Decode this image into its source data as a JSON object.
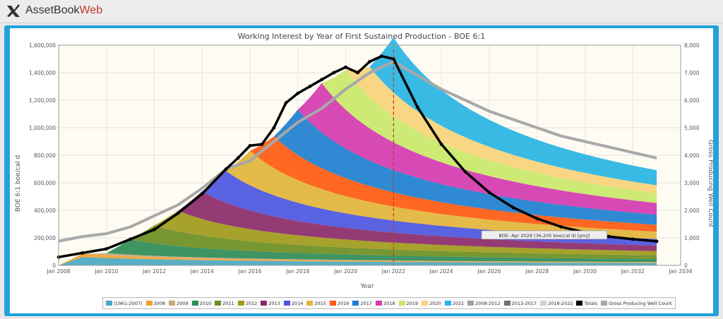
{
  "app": {
    "brand_main": "AssetBook",
    "brand_accent": "Web"
  },
  "chart_data": {
    "type": "area",
    "title": "Working Interest by Year of First Sustained Production - BOE 6:1",
    "xlabel": "Year",
    "ylabel_left": "BOE 6:1 boe/cal d",
    "ylabel_right": "Gross Producing Well Count",
    "xlim": [
      2008,
      2034
    ],
    "ylim_left": [
      0,
      1600000
    ],
    "ylim_right": [
      0,
      8000
    ],
    "x_ticks": [
      "Jan 2008",
      "Jan 2010",
      "Jan 2012",
      "Jan 2014",
      "Jan 2016",
      "Jan 2018",
      "Jan 2020",
      "Jan 2022",
      "Jan 2024",
      "Jan 2026",
      "Jan 2028",
      "Jan 2030",
      "Jan 2032",
      "Jan 2034"
    ],
    "y_ticks_left": [
      "0",
      "200,000",
      "400,000",
      "600,000",
      "800,000",
      "1,000,000",
      "1,200,000",
      "1,400,000",
      "1,600,000"
    ],
    "y_ticks_right": [
      "0",
      "1,000",
      "2,000",
      "3,000",
      "4,000",
      "5,000",
      "6,000",
      "7,000",
      "8,000"
    ],
    "forecast_start": 2022.0,
    "annotation": "BOE: Apr 2028 (36,205 boe/cal d) [proj]",
    "grid": true,
    "legend_position": "bottom",
    "vintages": [
      {
        "name": "(1961-2007)",
        "color": "#4aa8c0",
        "start": 2008,
        "peak": 60000,
        "decline": 0.12
      },
      {
        "name": "2008",
        "color": "#f0a030",
        "start": 2008,
        "peak": 25000,
        "decline": 0.25
      },
      {
        "name": "2009",
        "color": "#c9a87a",
        "start": 2009,
        "peak": 15000,
        "decline": 0.25
      },
      {
        "name": "2010",
        "color": "#2e8b57",
        "start": 2010,
        "peak": 110000,
        "decline": 0.22
      },
      {
        "name": "2011",
        "color": "#6b8e23",
        "start": 2011,
        "peak": 130000,
        "decline": 0.22
      },
      {
        "name": "2012",
        "color": "#a09a1a",
        "start": 2012,
        "peak": 150000,
        "decline": 0.25
      },
      {
        "name": "2013",
        "color": "#8b2a6b",
        "start": 2013,
        "peak": 200000,
        "decline": 0.25
      },
      {
        "name": "2014",
        "color": "#4c56e0",
        "start": 2014,
        "peak": 230000,
        "decline": 0.26
      },
      {
        "name": "2015",
        "color": "#e2b43a",
        "start": 2015,
        "peak": 250000,
        "decline": 0.27
      },
      {
        "name": "2016",
        "color": "#ff5a10",
        "start": 2016,
        "peak": 230000,
        "decline": 0.27
      },
      {
        "name": "2017",
        "color": "#1e7fd0",
        "start": 2017,
        "peak": 330000,
        "decline": 0.28
      },
      {
        "name": "2018",
        "color": "#d43ab0",
        "start": 2018,
        "peak": 360000,
        "decline": 0.28
      },
      {
        "name": "2019",
        "color": "#c9e86a",
        "start": 2019,
        "peak": 290000,
        "decline": 0.28
      },
      {
        "name": "2020",
        "color": "#f8d37a",
        "start": 2020,
        "peak": 220000,
        "decline": 0.28
      },
      {
        "name": "2021",
        "color": "#28b4e4",
        "start": 2021,
        "peak": 400000,
        "decline": 0.28
      }
    ],
    "totals": {
      "name": "Totals",
      "color": "#000000",
      "x": [
        2008,
        2009,
        2010,
        2011,
        2012,
        2013,
        2014,
        2015,
        2015.5,
        2016,
        2016.5,
        2017,
        2017.5,
        2018,
        2018.5,
        2019,
        2019.5,
        2020,
        2020.5,
        2021,
        2021.5,
        2022,
        2023,
        2024,
        2025,
        2026,
        2027,
        2028,
        2029,
        2030,
        2031,
        2032,
        2033
      ],
      "y": [
        60000,
        90000,
        120000,
        190000,
        260000,
        380000,
        520000,
        700000,
        780000,
        870000,
        880000,
        1000000,
        1180000,
        1250000,
        1300000,
        1350000,
        1400000,
        1440000,
        1400000,
        1480000,
        1520000,
        1500000,
        1150000,
        880000,
        680000,
        530000,
        420000,
        340000,
        280000,
        240000,
        210000,
        190000,
        175000
      ]
    },
    "series_lines": [
      {
        "name": "2008-2012",
        "color": "#a0a0a0"
      },
      {
        "name": "2013-2017",
        "color": "#707070"
      },
      {
        "name": "2018-2022",
        "color": "#d0d0d0"
      },
      {
        "name": "Gross Producing Well Count",
        "color": "#a8a8a8",
        "x": [
          2008,
          2009,
          2010,
          2011,
          2012,
          2013,
          2014,
          2015,
          2016,
          2017,
          2018,
          2019,
          2020,
          2021,
          2022,
          2023,
          2024,
          2025,
          2026,
          2027,
          2028,
          2029,
          2030,
          2031,
          2032,
          2033
        ],
        "y": [
          880,
          1050,
          1150,
          1400,
          1800,
          2200,
          2800,
          3500,
          3800,
          4500,
          5200,
          5700,
          6400,
          7000,
          7400,
          6900,
          6400,
          6000,
          5600,
          5300,
          5000,
          4700,
          4500,
          4300,
          4100,
          3900
        ]
      }
    ]
  }
}
